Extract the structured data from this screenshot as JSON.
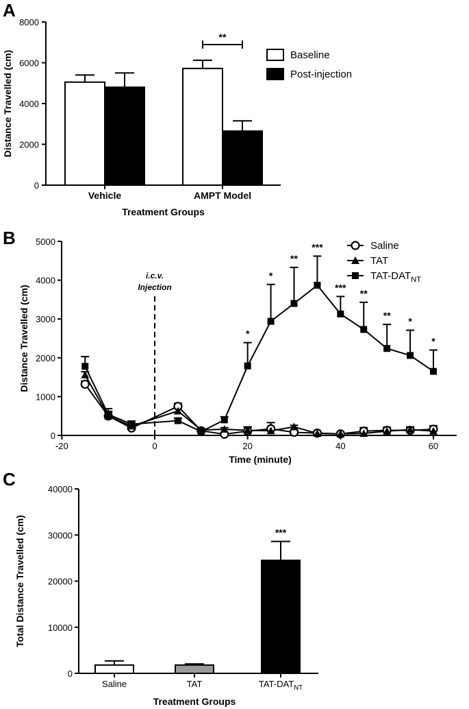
{
  "chart_data": [
    {
      "panel": "A",
      "type": "bar",
      "categories": [
        "Vehicle",
        "AMPT Model"
      ],
      "series": [
        {
          "name": "Baseline",
          "values": [
            5050,
            5720
          ],
          "errors": [
            350,
            400
          ],
          "fill": "#ffffff"
        },
        {
          "name": "Post-injection",
          "values": [
            4800,
            2650
          ],
          "errors": [
            700,
            500
          ],
          "fill": "#000000"
        }
      ],
      "xlabel": "Treatment Groups",
      "ylabel": "Distance Travelled (cm)",
      "ylim": [
        0,
        8000
      ],
      "yticks": [
        "0",
        "2000",
        "4000",
        "6000",
        "8000"
      ],
      "significance": [
        {
          "category": "AMPT Model",
          "label": "**"
        }
      ],
      "legend_position": "right"
    },
    {
      "panel": "B",
      "type": "line",
      "x": [
        -15,
        -10,
        -5,
        5,
        10,
        15,
        20,
        25,
        30,
        35,
        40,
        45,
        50,
        55,
        60
      ],
      "series": [
        {
          "name": "Saline",
          "marker": "circle-open",
          "values": [
            1320,
            500,
            190,
            750,
            120,
            30,
            110,
            170,
            80,
            60,
            40,
            110,
            130,
            130,
            160
          ],
          "errors": [
            80,
            120,
            60,
            80,
            50,
            30,
            100,
            160,
            60,
            40,
            40,
            90,
            80,
            80,
            90
          ]
        },
        {
          "name": "TAT",
          "marker": "triangle",
          "values": [
            1560,
            500,
            240,
            630,
            140,
            160,
            130,
            120,
            220,
            50,
            40,
            50,
            110,
            150,
            110
          ],
          "errors": [
            80,
            100,
            80,
            80,
            40,
            40,
            90,
            80,
            40,
            40,
            30,
            30,
            50,
            70,
            60
          ]
        },
        {
          "name": "TAT-DAT",
          "subscript": "NT",
          "marker": "square",
          "values": [
            1780,
            540,
            290,
            380,
            100,
            400,
            1790,
            2940,
            3400,
            3870,
            3130,
            2730,
            2240,
            2060,
            1650
          ],
          "errors": [
            250,
            150,
            80,
            60,
            40,
            80,
            600,
            950,
            930,
            750,
            450,
            700,
            620,
            650,
            550
          ],
          "significance": [
            "",
            "",
            "",
            "",
            "",
            "",
            "*",
            "*",
            "**",
            "***",
            "***",
            "**",
            "**",
            "*",
            "*"
          ]
        }
      ],
      "xlabel": "Time (minute)",
      "ylabel": "Distance Travelled (cm)",
      "xlim": [
        -20,
        65
      ],
      "ylim": [
        0,
        5000
      ],
      "xticks": [
        "-20",
        "0",
        "20",
        "40",
        "60"
      ],
      "yticks": [
        "0",
        "1000",
        "2000",
        "3000",
        "4000",
        "5000"
      ],
      "annotation": {
        "line1": "i.c.v.",
        "line2": "Injection",
        "x": 0
      },
      "legend_position": "top-right"
    },
    {
      "panel": "C",
      "type": "bar",
      "categories": [
        "Saline",
        "TAT",
        "TAT-DAT"
      ],
      "category_subscripts": [
        "",
        "",
        "NT"
      ],
      "values": [
        1800,
        1800,
        24500
      ],
      "errors": [
        900,
        250,
        4100
      ],
      "fills": [
        "#ffffff",
        "#999999",
        "#000000"
      ],
      "significance": [
        "",
        "",
        "***"
      ],
      "xlabel": "Treatment  Groups",
      "ylabel": "Total  Distance  Travelled (cm)",
      "ylim": [
        0,
        40000
      ],
      "yticks": [
        "0",
        "10000",
        "20000",
        "30000",
        "40000"
      ]
    }
  ]
}
